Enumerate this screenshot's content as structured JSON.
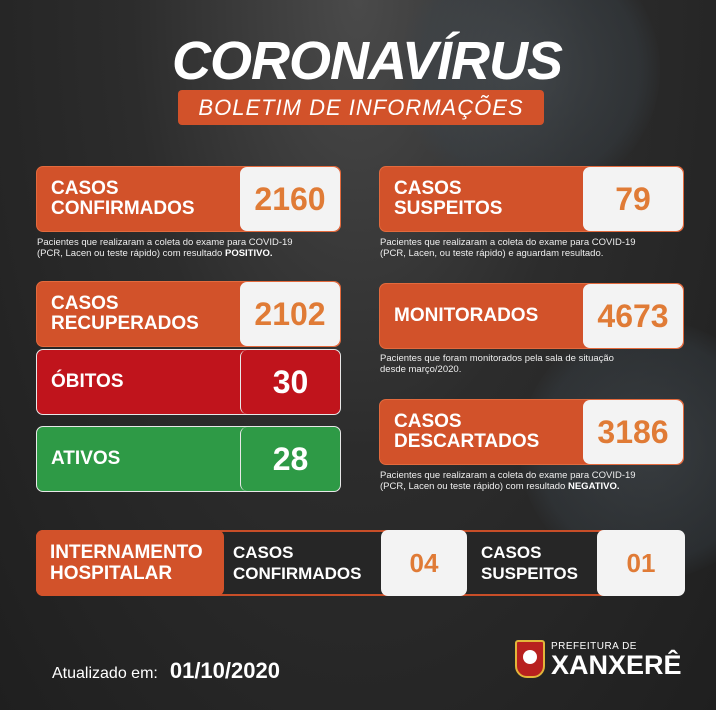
{
  "header": {
    "title": "CORONAVÍRUS",
    "subtitle": "BOLETIM DE INFORMAÇÕES"
  },
  "colors": {
    "orange": "#d2522a",
    "value": "#e07b36",
    "red": "#c0141c",
    "green": "#2e9a46"
  },
  "left": [
    {
      "label1": "CASOS",
      "label2": "CONFIRMADOS",
      "value": "2160",
      "note1": "Pacientes que realizaram a coleta do exame para COVID-19",
      "note2": "(PCR, Lacen ou teste rápido) com resultado ",
      "note_bold": "POSITIVO."
    },
    {
      "label1": "CASOS",
      "label2": "RECUPERADOS",
      "value": "2102"
    },
    {
      "label1": "ÓBITOS",
      "value": "30"
    },
    {
      "label1": "ATIVOS",
      "value": "28"
    }
  ],
  "right": [
    {
      "label1": "CASOS",
      "label2": "SUSPEITOS",
      "value": "79",
      "note1": "Pacientes que realizaram a coleta do exame para COVID-19",
      "note2": "(PCR, Lacen, ou teste rápido) e aguardam resultado."
    },
    {
      "label1": "MONITORADOS",
      "value": "4673",
      "note1": "Pacientes que foram monitorados pela sala de situação",
      "note2": "desde março/2020."
    },
    {
      "label1": "CASOS",
      "label2": "DESCARTADOS",
      "value": "3186",
      "note1": "Pacientes que realizaram a coleta do exame para COVID-19",
      "note2": "(PCR, Lacen ou teste rápido) com resultado ",
      "note_bold": "NEGATIVO."
    }
  ],
  "hospital": {
    "label1": "INTERNAMENTO",
    "label2": "HOSPITALAR",
    "confirmed_label1": "CASOS",
    "confirmed_label2": "CONFIRMADOS",
    "confirmed": "04",
    "suspect_label1": "CASOS",
    "suspect_label2": "SUSPEITOS",
    "suspect": "01"
  },
  "footer": {
    "updated_label": "Atualizado em:",
    "date": "01/10/2020",
    "logo_small": "PREFEITURA DE",
    "logo_main": "XANXERÊ"
  }
}
